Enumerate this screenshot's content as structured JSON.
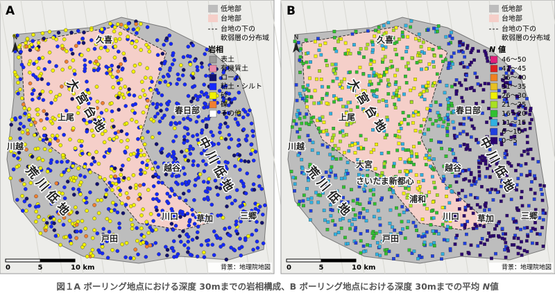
{
  "panels": [
    {
      "label": "A",
      "legend": {
        "lowland": {
          "label": "低地部",
          "color": "#bdbdbd"
        },
        "upland": {
          "label": "台地部",
          "color": "#f5cfc9"
        },
        "soft_layer": [
          "台地の下の",
          "軟弱層の分布域"
        ],
        "heading": "岩相",
        "items": [
          {
            "name": "表土",
            "color": "#9a9a9a"
          },
          {
            "name": "有機質土",
            "color": "#e889a8"
          },
          {
            "name": "ローム",
            "color": "#101070"
          },
          {
            "name": "粘土・シルト",
            "color": "#1428ff"
          },
          {
            "name": "砂",
            "color": "#f2f200"
          },
          {
            "name": "礫",
            "color": "#f08030"
          },
          {
            "name": "その他",
            "color": "#ffffff"
          }
        ]
      },
      "places": [
        "久喜",
        "大宮台地",
        "上尾",
        "春日部",
        "川越",
        "中川低地",
        "越谷",
        "荒川低地",
        "川口",
        "草加",
        "三郷",
        "戸田"
      ],
      "scale": [
        "0",
        "5",
        "10 km"
      ],
      "credit": "背景：地理院地図"
    },
    {
      "label": "B",
      "legend": {
        "lowland": {
          "label": "低地部",
          "color": "#bdbdbd"
        },
        "upland": {
          "label": "台地部",
          "color": "#f5cfc9"
        },
        "soft_layer": [
          "台地の下の",
          "軟弱層の分布域"
        ],
        "heading": {
          "n": "N",
          "rest": " 値"
        },
        "items": [
          {
            "name": "46～50",
            "color": "#e0207a"
          },
          {
            "name": "41～45",
            "color": "#e02020"
          },
          {
            "name": "36～40",
            "color": "#f08020"
          },
          {
            "name": "31～35",
            "color": "#e8c020"
          },
          {
            "name": "26～30",
            "color": "#f0f000"
          },
          {
            "name": "21～25",
            "color": "#a8e020"
          },
          {
            "name": "16～20",
            "color": "#30c030"
          },
          {
            "name": "11～15",
            "color": "#30b0e0"
          },
          {
            "name": "6～10",
            "color": "#2040e0"
          },
          {
            "name": "0～5",
            "color": "#2a0070"
          }
        ]
      },
      "places": [
        "久喜",
        "大宮台地",
        "上尾",
        "春日部",
        "川越",
        "中川低地",
        "越谷",
        "荒川低地",
        "川口",
        "草加",
        "三郷",
        "戸田",
        "大宮",
        "さいたま新都心",
        "浦和"
      ],
      "scale": [
        "0",
        "5",
        "10 km"
      ],
      "credit": "背景：地理院地図"
    }
  ],
  "caption": {
    "part1": "図１A ボーリング地点における深度 30mまでの岩相構成、B ボーリング地点における深度 30mまでの平均 ",
    "n": "N",
    "part2": "値"
  }
}
